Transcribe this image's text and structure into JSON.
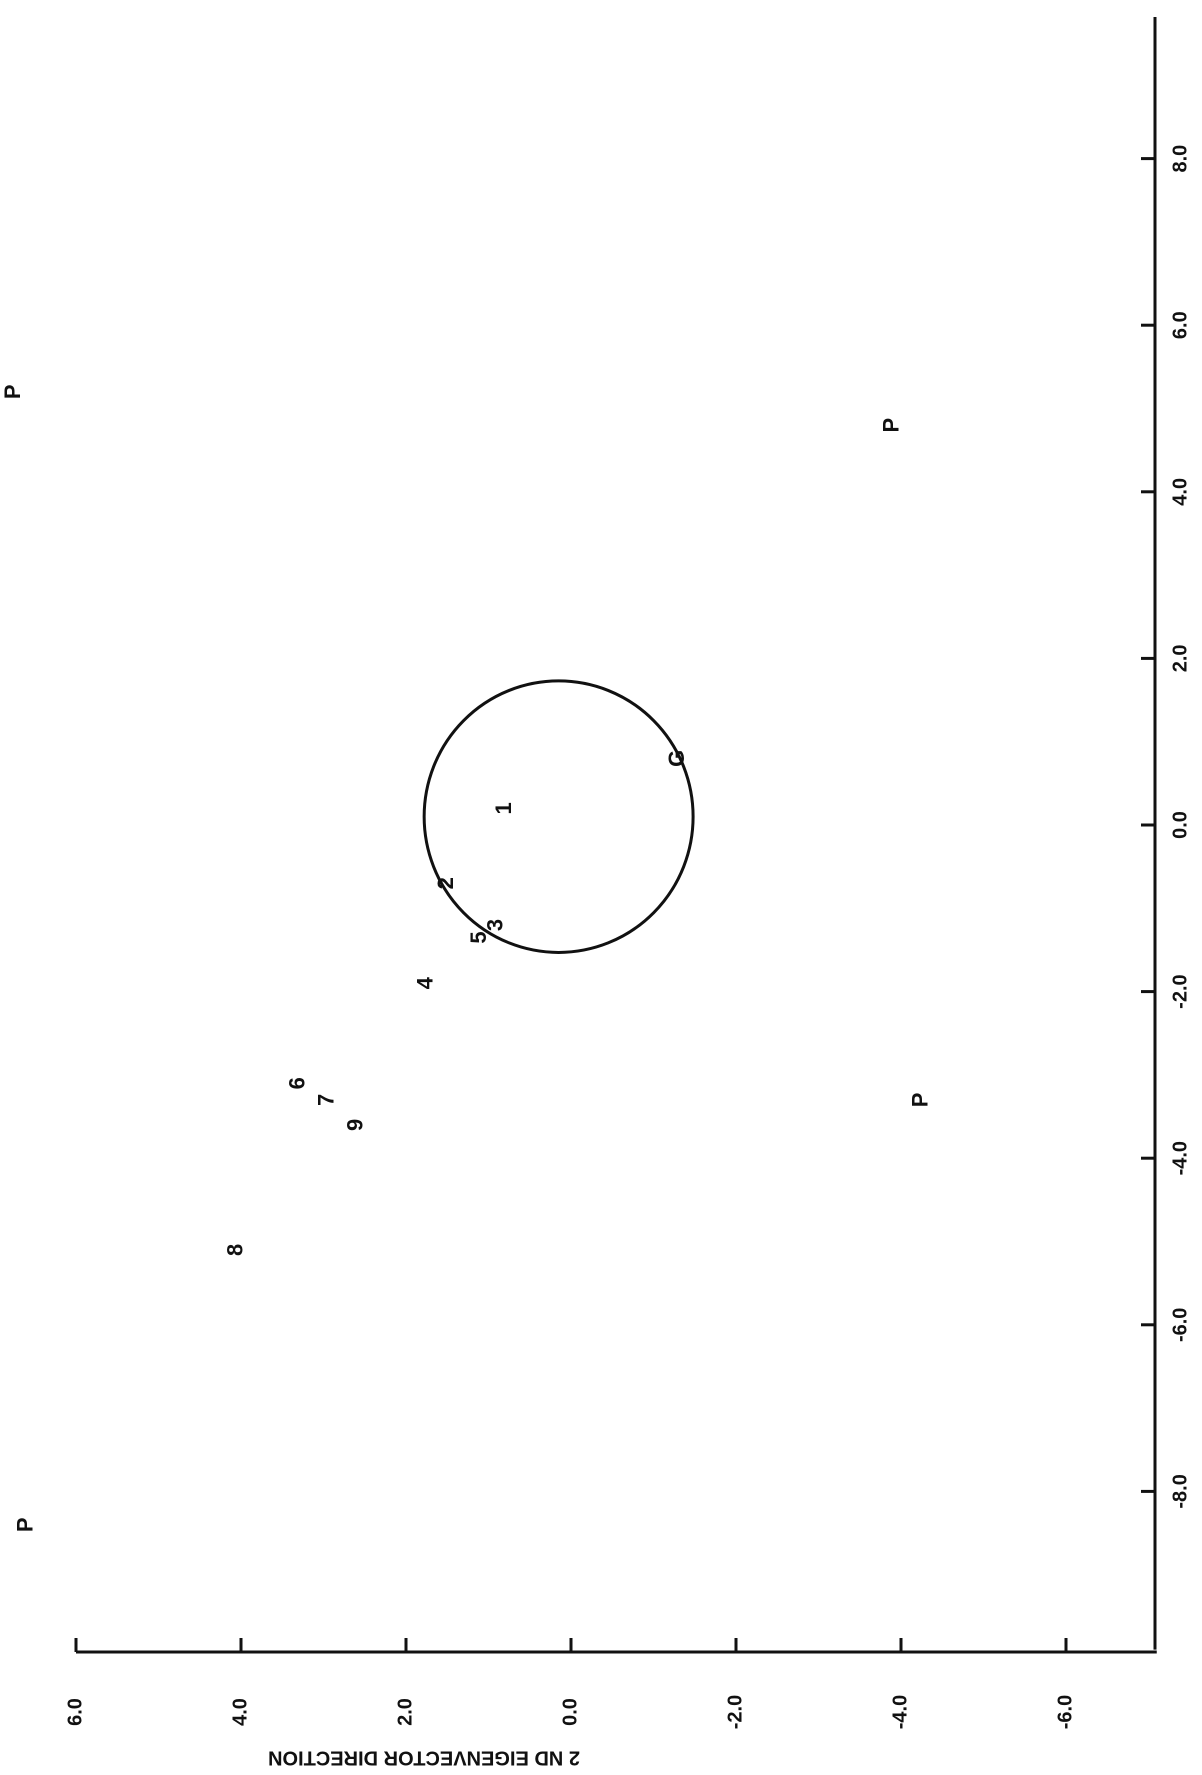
{
  "chart_data": {
    "type": "scatter",
    "ylabel": "2 ND EIGENVECTOR DIRECTION",
    "x": [
      5.2,
      4.8,
      -3.3,
      -8.4,
      0.8,
      0.2,
      -0.7,
      -1.2,
      -1.35,
      -1.9,
      -3.1,
      -3.3,
      -3.6,
      -5.1
    ],
    "values": [
      6.75,
      -3.9,
      -4.25,
      6.6,
      -1.3,
      0.8,
      1.5,
      0.9,
      1.1,
      1.75,
      3.3,
      2.95,
      2.6,
      4.05
    ],
    "point_labels": [
      "P",
      "P",
      "P",
      "P",
      "G",
      "1",
      "2",
      "3",
      "5",
      "4",
      "6",
      "7",
      "9",
      "8"
    ],
    "circle": {
      "center": [
        0.1,
        0.15
      ],
      "radius": 1.63
    },
    "xlim": [
      -9.9,
      9.7
    ],
    "ylim": [
      -7.1,
      6.0
    ],
    "xticks": [
      {
        "value": -8,
        "label": "-8.0"
      },
      {
        "value": -6,
        "label": "-6.0"
      },
      {
        "value": -4,
        "label": "-4.0"
      },
      {
        "value": -2,
        "label": "-2.0"
      },
      {
        "value": 0,
        "label": "0.0"
      },
      {
        "value": 2,
        "label": "2.0"
      },
      {
        "value": 4,
        "label": "4.0"
      },
      {
        "value": 6,
        "label": "6.0"
      },
      {
        "value": 8,
        "label": "8.0"
      }
    ],
    "yticks": [
      {
        "value": -6,
        "label": "-6.0"
      },
      {
        "value": -4,
        "label": "-4.0"
      },
      {
        "value": -2,
        "label": "-2.0"
      },
      {
        "value": 0,
        "label": "0.0"
      },
      {
        "value": 2,
        "label": "2.0"
      },
      {
        "value": 4,
        "label": "4.0"
      },
      {
        "value": 6,
        "label": "6.0"
      }
    ]
  }
}
